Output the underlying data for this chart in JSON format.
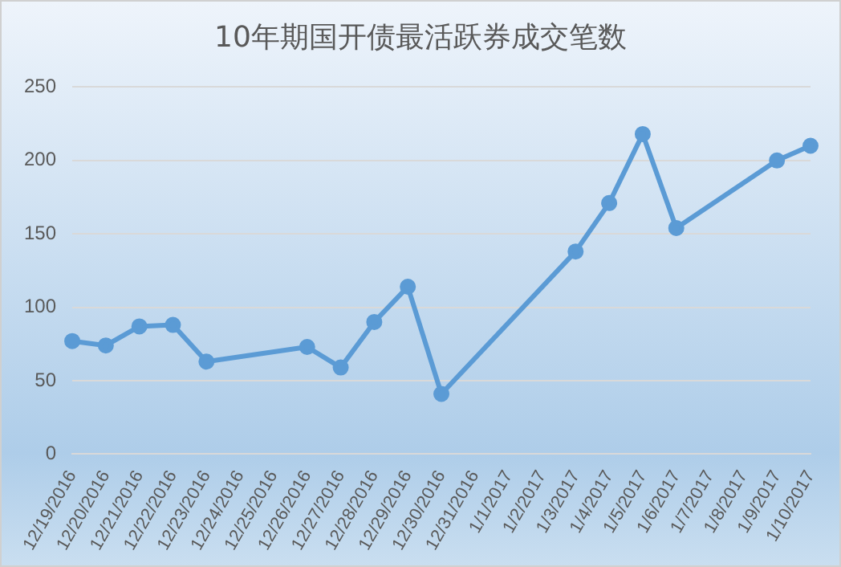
{
  "chart_data": {
    "type": "line",
    "title": "10年期国开债最活跃券成交笔数",
    "categories": [
      "12/19/2016",
      "12/20/2016",
      "12/21/2016",
      "12/22/2016",
      "12/23/2016",
      "12/24/2016",
      "12/25/2016",
      "12/26/2016",
      "12/27/2016",
      "12/28/2016",
      "12/29/2016",
      "12/30/2016",
      "12/31/2016",
      "1/1/2017",
      "1/2/2017",
      "1/3/2017",
      "1/4/2017",
      "1/5/2017",
      "1/6/2017",
      "1/7/2017",
      "1/8/2017",
      "1/9/2017",
      "1/10/2017"
    ],
    "series": [
      {
        "color": "#5b9bd5",
        "values": [
          77,
          74,
          87,
          88,
          63,
          null,
          null,
          73,
          59,
          90,
          114,
          41,
          null,
          null,
          null,
          138,
          171,
          218,
          154,
          null,
          null,
          200,
          210
        ]
      }
    ],
    "ylim": [
      0,
      250
    ],
    "yticks": [
      0,
      50,
      100,
      150,
      200,
      250
    ],
    "grid": "y",
    "legend": false,
    "marker": "circle",
    "line_style": "solid"
  }
}
